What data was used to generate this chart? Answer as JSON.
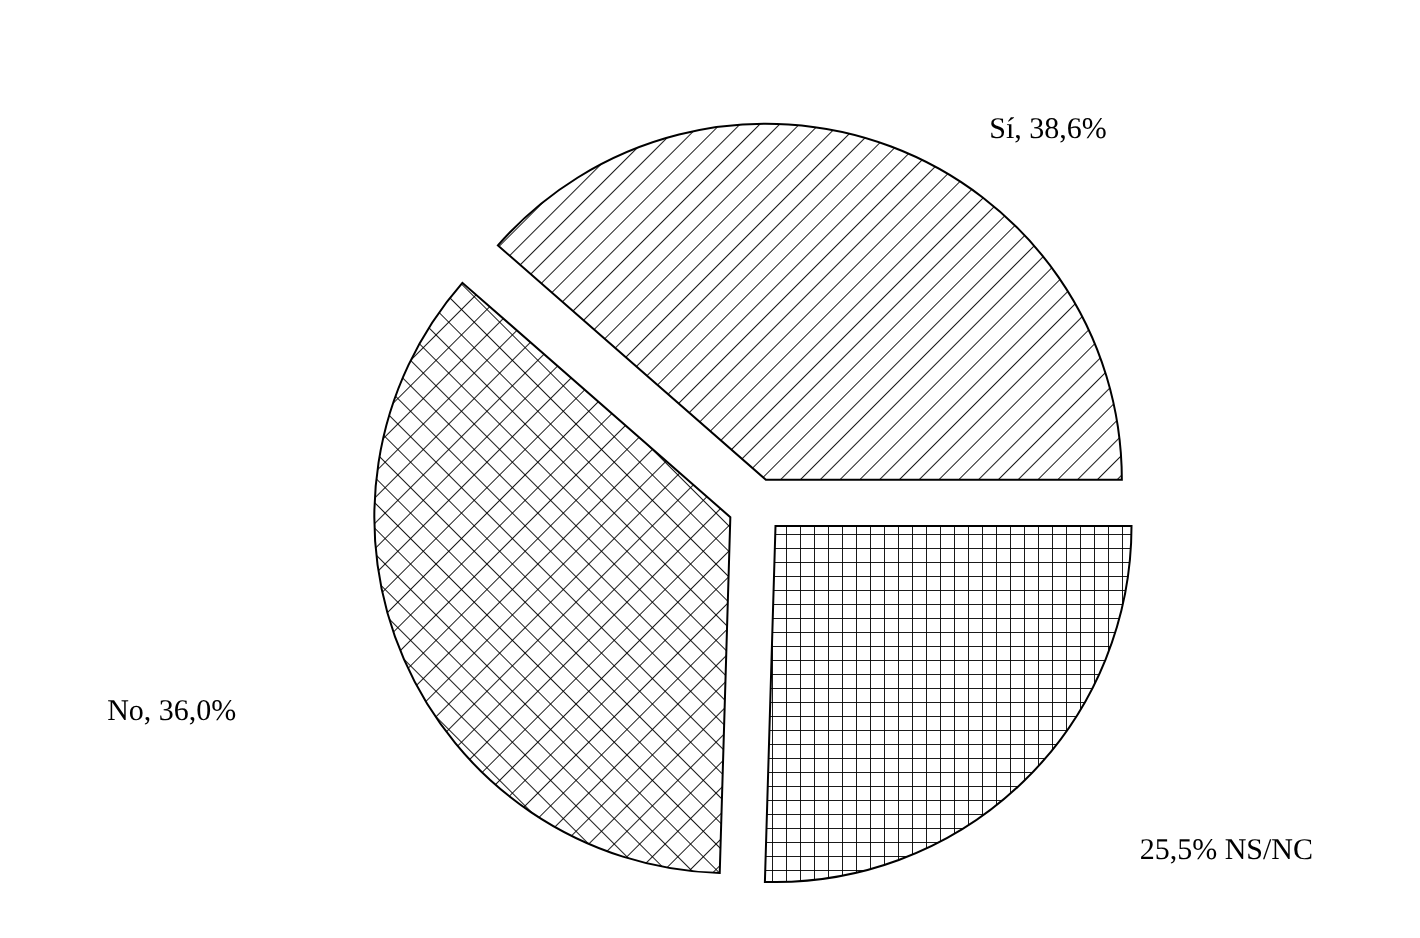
{
  "chart_data": {
    "type": "pie",
    "categories": [
      "Sí",
      "No",
      "NS/NC"
    ],
    "values": [
      38.6,
      36.0,
      25.5
    ],
    "value_labels": [
      "38,6%",
      "36,0%",
      "25,5%"
    ],
    "colors": [
      "#000000",
      "#000000",
      "#000000"
    ]
  }
}
